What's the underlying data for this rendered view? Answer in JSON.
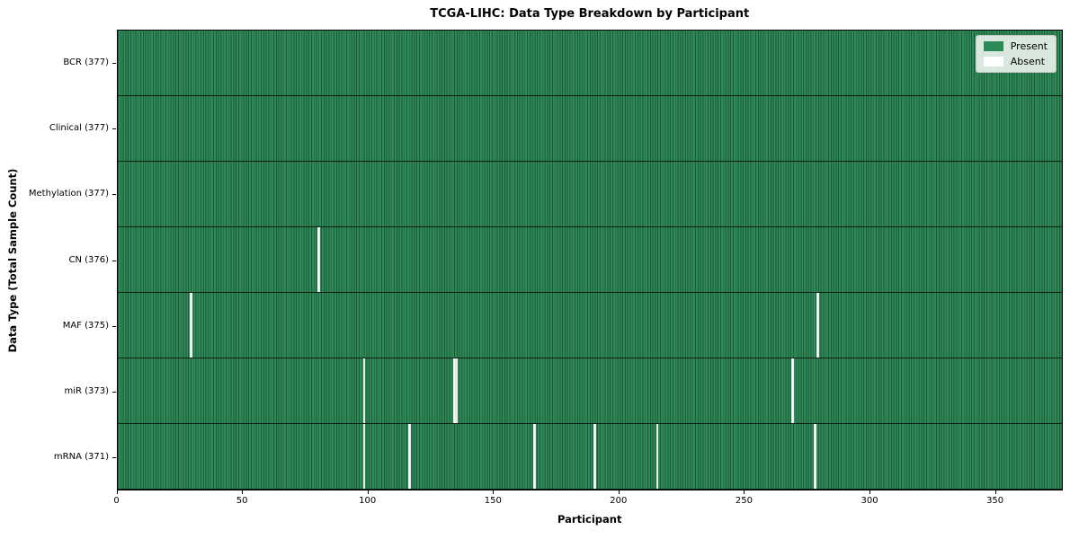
{
  "colors": {
    "present": "#2e8b57",
    "absent": "#ffffff",
    "cell_edge": "rgba(0,0,0,0.35)",
    "row_divider": "#000000",
    "plot_border": "#000000",
    "legend_face": "rgba(255,255,255,0.82)",
    "legend_edge": "#c8c8c8",
    "text": "#000000"
  },
  "chart_data": {
    "type": "heatmap",
    "title": "TCGA-LIHC: Data Type Breakdown by Participant",
    "xlabel": "Participant",
    "ylabel": "Data Type (Total Sample Count)",
    "x_range": [
      0,
      377
    ],
    "n_participants": 377,
    "x_ticks": [
      0,
      50,
      100,
      150,
      200,
      250,
      300,
      350
    ],
    "grid": false,
    "legend_position": "upper right",
    "legend_items": [
      {
        "label": "Present",
        "color": "#2e8b57"
      },
      {
        "label": "Absent",
        "color": "#ffffff"
      }
    ],
    "rows": [
      {
        "name": "BCR",
        "total": 377,
        "absent_participants": []
      },
      {
        "name": "Clinical",
        "total": 377,
        "absent_participants": []
      },
      {
        "name": "Methylation",
        "total": 377,
        "absent_participants": []
      },
      {
        "name": "CN",
        "total": 376,
        "absent_participants": [
          80
        ]
      },
      {
        "name": "MAF",
        "total": 375,
        "absent_participants": [
          29,
          279
        ]
      },
      {
        "name": "miR",
        "total": 373,
        "absent_participants": [
          98,
          134,
          135,
          269
        ]
      },
      {
        "name": "mRNA",
        "total": 371,
        "absent_participants": [
          98,
          116,
          166,
          190,
          215,
          278
        ]
      }
    ],
    "y_tick_label_format": "{name} ({total})"
  }
}
